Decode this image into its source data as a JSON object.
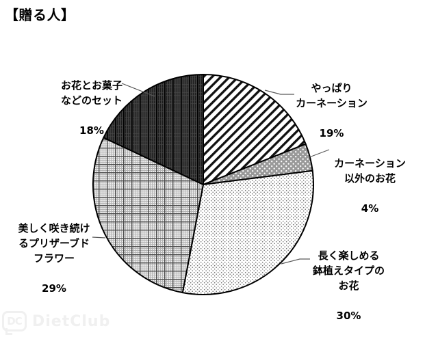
{
  "title": "【贈る人】",
  "chart_data": {
    "type": "pie",
    "title": "【贈る人】",
    "categories": [
      "やっぱりカーネーション",
      "カーネーション以外のお花",
      "長く楽しめる鉢植えタイプのお花",
      "美しく咲き続けるプリザーブドフラワー",
      "お花とお菓子などのセット"
    ],
    "values": [
      19,
      4,
      30,
      29,
      18
    ],
    "unit": "%",
    "start_angle_deg": 0,
    "direction": "clockwise",
    "style": "monochrome-patterns",
    "patterns": [
      "diagonal-stripes",
      "gray-with-white-dots",
      "white-with-small-dots",
      "fine-plaid-grid",
      "dark-vertical-lines"
    ],
    "legend": "none",
    "data_labels": "outside-with-leader-lines"
  },
  "labels": {
    "carnation": {
      "text": "やっぱり\nカーネーション",
      "pct": "19%"
    },
    "other_flowers": {
      "text": "カーネーション\n以外のお花",
      "pct": "4%"
    },
    "potted": {
      "text": "長く楽しめる\n鉢植えタイプの\nお花",
      "pct": "30%"
    },
    "preserved": {
      "text": "美しく咲き続け\nるプリザーブド\nフラワー",
      "pct": "29%"
    },
    "flower_sweets_set": {
      "text": "お花とお菓子\nなどのセット",
      "pct": "18%"
    }
  },
  "watermark": {
    "icon_text": "DC",
    "text": "DietClub"
  },
  "colors": {
    "outline": "#000000",
    "leader_line": "#595959",
    "dark_slice_bg": "#3c3c3c",
    "mid_gray": "#999999",
    "watermark_gray": "#f0f0f0"
  }
}
